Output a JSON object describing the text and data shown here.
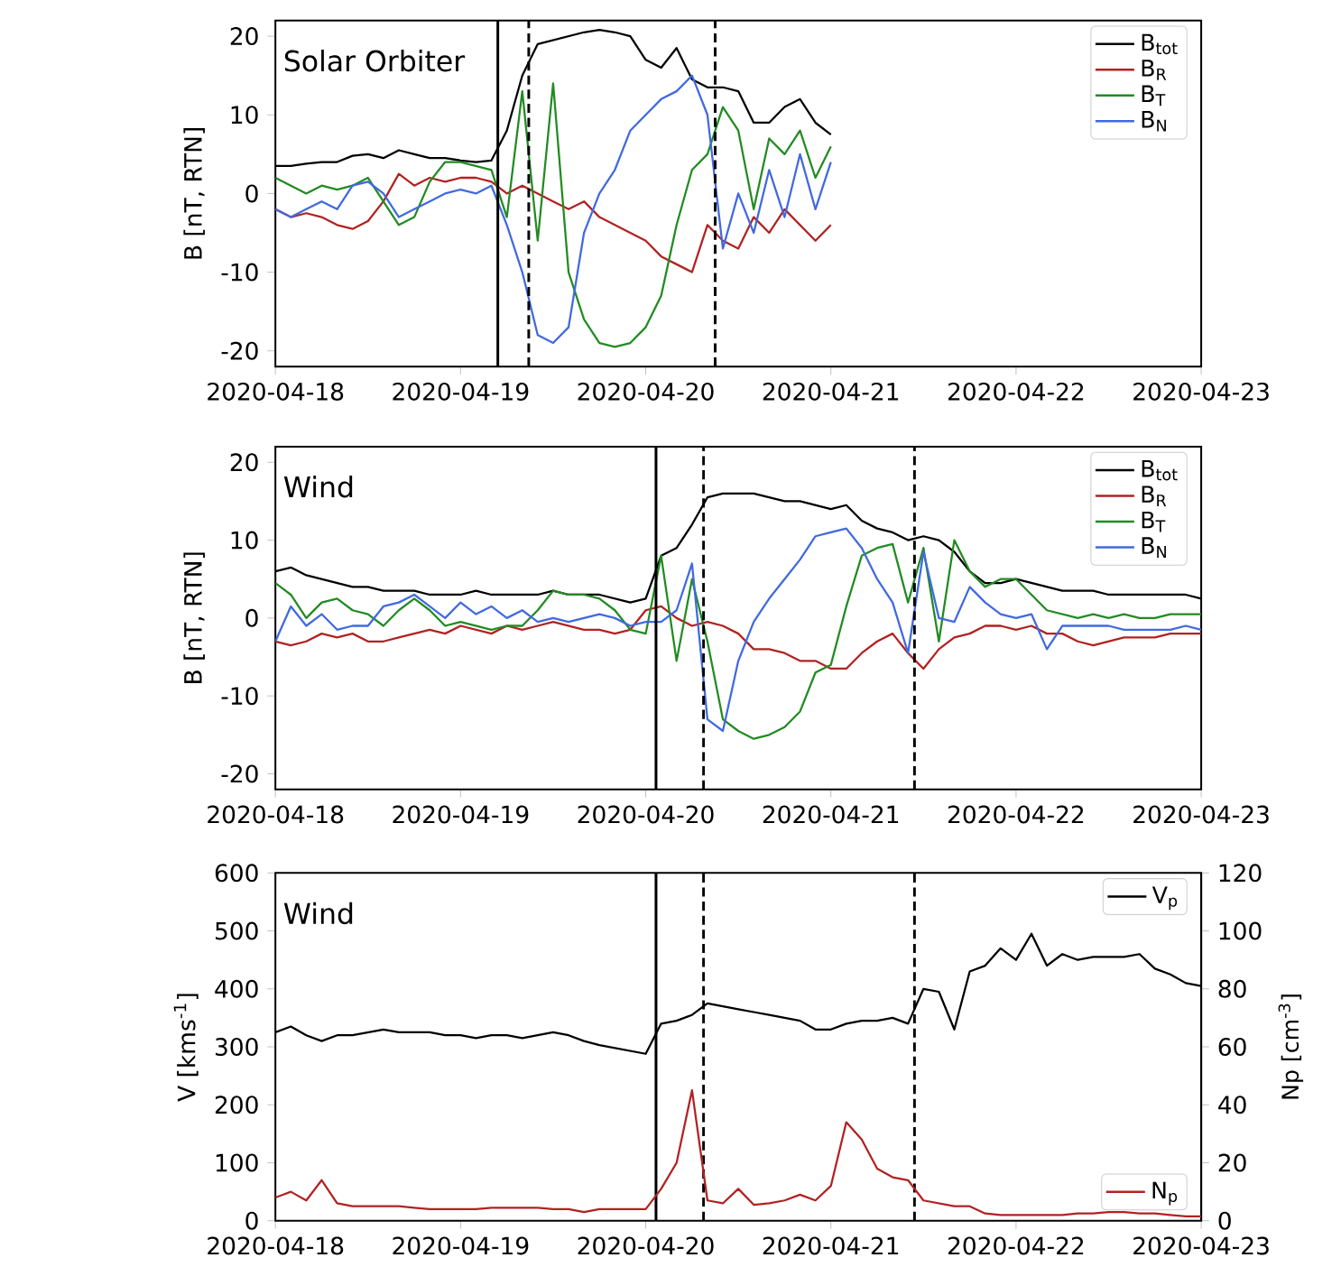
{
  "chart_data": [
    {
      "type": "line",
      "title": "Solar Orbiter",
      "ylabel": "B [nT, RTN]",
      "legend": "top right",
      "xlim": [
        "2020-04-18",
        "2020-04-23"
      ],
      "xticks": [
        "2020-04-18",
        "2020-04-19",
        "2020-04-20",
        "2020-04-21",
        "2020-04-22",
        "2020-04-23"
      ],
      "ylim": [
        -22,
        22
      ],
      "yticks": [
        -20,
        -10,
        0,
        10,
        20
      ],
      "x": [
        "2020-04-18T00:00",
        "2020-04-18T02:00",
        "2020-04-18T04:00",
        "2020-04-18T06:00",
        "2020-04-18T08:00",
        "2020-04-18T10:00",
        "2020-04-18T12:00",
        "2020-04-18T14:00",
        "2020-04-18T16:00",
        "2020-04-18T18:00",
        "2020-04-18T20:00",
        "2020-04-18T22:00",
        "2020-04-19T00:00",
        "2020-04-19T02:00",
        "2020-04-19T04:00",
        "2020-04-19T06:00",
        "2020-04-19T08:00",
        "2020-04-19T10:00",
        "2020-04-19T12:00",
        "2020-04-19T14:00",
        "2020-04-19T16:00",
        "2020-04-19T18:00",
        "2020-04-19T20:00",
        "2020-04-19T22:00",
        "2020-04-20T00:00",
        "2020-04-20T02:00",
        "2020-04-20T04:00",
        "2020-04-20T06:00",
        "2020-04-20T08:00",
        "2020-04-20T10:00",
        "2020-04-20T12:00",
        "2020-04-20T14:00",
        "2020-04-20T16:00",
        "2020-04-20T18:00",
        "2020-04-20T20:00",
        "2020-04-20T22:00",
        "2020-04-21T00:00"
      ],
      "series": [
        {
          "name": "B$_{tot}$",
          "color": "#000000",
          "values": [
            3.5,
            3.5,
            3.8,
            4,
            4,
            4.8,
            5,
            4.5,
            5.5,
            5,
            4.5,
            4.5,
            4.2,
            4,
            4.2,
            8,
            15,
            19,
            19.5,
            20,
            20.5,
            20.8,
            20.5,
            20,
            17,
            16,
            18.5,
            14.5,
            13.5,
            13.5,
            13,
            9,
            9,
            11,
            12,
            9,
            7.5
          ]
        },
        {
          "name": "B$_{R}$",
          "color": "#b22222",
          "values": [
            -2,
            -3,
            -2.5,
            -3,
            -4,
            -4.5,
            -3.5,
            -1,
            2.5,
            1,
            2,
            1.5,
            2,
            2,
            1.5,
            0,
            1,
            0,
            -1,
            -2,
            -1,
            -3,
            -4,
            -5,
            -6,
            -8,
            -9,
            -10,
            -4,
            -6,
            -7,
            -3,
            -5,
            -2,
            -4,
            -6,
            -4
          ]
        },
        {
          "name": "B$_{T}$",
          "color": "#228b22",
          "values": [
            2,
            1,
            0,
            1,
            0.5,
            1,
            2,
            -1,
            -4,
            -3,
            1.5,
            4,
            4,
            3.5,
            3,
            -3,
            13,
            -6,
            14,
            -10,
            -16,
            -19,
            -19.5,
            -19,
            -17,
            -13,
            -4,
            3,
            5,
            11,
            8,
            -2,
            7,
            5,
            8,
            2,
            6
          ]
        },
        {
          "name": "B$_{N}$",
          "color": "#4169e1",
          "values": [
            -2,
            -3,
            -2,
            -1,
            -2,
            1,
            1.5,
            0,
            -3,
            -2,
            -1,
            0,
            0.5,
            0,
            1,
            -4,
            -10,
            -18,
            -19,
            -17,
            -5,
            0,
            3,
            8,
            10,
            12,
            13,
            15,
            10,
            -7,
            0,
            -5,
            3,
            -3,
            5,
            -2,
            4
          ]
        }
      ],
      "ref_lines": [
        {
          "axis": "x",
          "value": "2020-04-19T04:50",
          "color": "#000000",
          "line_style": "solid"
        },
        {
          "axis": "x",
          "value": "2020-04-19T08:50",
          "color": "#000000",
          "line_style": "dashed"
        },
        {
          "axis": "x",
          "value": "2020-04-20T09:00",
          "color": "#000000",
          "line_style": "dashed"
        }
      ]
    },
    {
      "type": "line",
      "title": "Wind",
      "ylabel": "B [nT, RTN]",
      "legend": "top right",
      "xlim": [
        "2020-04-18",
        "2020-04-23"
      ],
      "xticks": [
        "2020-04-18",
        "2020-04-19",
        "2020-04-20",
        "2020-04-21",
        "2020-04-22",
        "2020-04-23"
      ],
      "ylim": [
        -22,
        22
      ],
      "yticks": [
        -20,
        -10,
        0,
        10,
        20
      ],
      "x": [
        "2020-04-18T00:00",
        "2020-04-18T02:00",
        "2020-04-18T04:00",
        "2020-04-18T06:00",
        "2020-04-18T08:00",
        "2020-04-18T10:00",
        "2020-04-18T12:00",
        "2020-04-18T14:00",
        "2020-04-18T16:00",
        "2020-04-18T18:00",
        "2020-04-18T20:00",
        "2020-04-18T22:00",
        "2020-04-19T00:00",
        "2020-04-19T02:00",
        "2020-04-19T04:00",
        "2020-04-19T06:00",
        "2020-04-19T08:00",
        "2020-04-19T10:00",
        "2020-04-19T12:00",
        "2020-04-19T14:00",
        "2020-04-19T16:00",
        "2020-04-19T18:00",
        "2020-04-19T20:00",
        "2020-04-19T22:00",
        "2020-04-20T00:00",
        "2020-04-20T02:00",
        "2020-04-20T04:00",
        "2020-04-20T06:00",
        "2020-04-20T08:00",
        "2020-04-20T10:00",
        "2020-04-20T12:00",
        "2020-04-20T14:00",
        "2020-04-20T16:00",
        "2020-04-20T18:00",
        "2020-04-20T20:00",
        "2020-04-20T22:00",
        "2020-04-21T00:00",
        "2020-04-21T02:00",
        "2020-04-21T04:00",
        "2020-04-21T06:00",
        "2020-04-21T08:00",
        "2020-04-21T10:00",
        "2020-04-21T12:00",
        "2020-04-21T14:00",
        "2020-04-21T16:00",
        "2020-04-21T18:00",
        "2020-04-21T20:00",
        "2020-04-21T22:00",
        "2020-04-22T00:00",
        "2020-04-22T02:00",
        "2020-04-22T04:00",
        "2020-04-22T06:00",
        "2020-04-22T08:00",
        "2020-04-22T10:00",
        "2020-04-22T12:00",
        "2020-04-22T14:00",
        "2020-04-22T16:00",
        "2020-04-22T18:00",
        "2020-04-22T20:00",
        "2020-04-22T22:00",
        "2020-04-23T00:00"
      ],
      "series": [
        {
          "name": "B$_{tot}$",
          "color": "#000000",
          "values": [
            6,
            6.5,
            5.5,
            5,
            4.5,
            4,
            4,
            3.5,
            3.5,
            3.5,
            3,
            3,
            3,
            3.5,
            3,
            3,
            3,
            3,
            3.5,
            3,
            3,
            3,
            2.5,
            2,
            2.5,
            8,
            9,
            12,
            15.5,
            16,
            16,
            16,
            15.5,
            15,
            15,
            14.5,
            14,
            14.5,
            12.5,
            11.5,
            11,
            10,
            10.5,
            10,
            8.5,
            6,
            4.5,
            4.5,
            5,
            4.5,
            4,
            3.5,
            3.5,
            3.5,
            3,
            3,
            3,
            3,
            3,
            3,
            2.5
          ]
        },
        {
          "name": "B$_{R}$",
          "color": "#b22222",
          "values": [
            -3,
            -3.5,
            -3,
            -2,
            -2.5,
            -2,
            -3,
            -3,
            -2.5,
            -2,
            -1.5,
            -2,
            -1,
            -1.5,
            -2,
            -1,
            -1.5,
            -1,
            -0.5,
            -1,
            -1.5,
            -1.5,
            -2,
            -1.5,
            1,
            1.5,
            0,
            -1,
            -0.5,
            -1,
            -2,
            -4,
            -4,
            -4.5,
            -5.5,
            -5.5,
            -6.5,
            -6.5,
            -4.5,
            -3,
            -2,
            -4.5,
            -6.5,
            -4,
            -2.5,
            -2,
            -1,
            -1,
            -1.5,
            -1,
            -2,
            -2,
            -3,
            -3.5,
            -3,
            -2.5,
            -2.5,
            -2.5,
            -2,
            -2,
            -2
          ]
        },
        {
          "name": "B$_{T}$",
          "color": "#228b22",
          "values": [
            4.5,
            3,
            0,
            2,
            2.5,
            1,
            0.5,
            -1,
            1,
            2.5,
            1,
            -1,
            -0.5,
            -1,
            -1.5,
            -1,
            -1,
            1,
            3.5,
            3,
            3,
            2.5,
            1,
            -1.5,
            -2,
            8,
            -5.5,
            5,
            -3,
            -13,
            -14.5,
            -15.5,
            -15,
            -14,
            -12,
            -7,
            -6,
            1.5,
            8,
            9,
            9.5,
            2,
            9,
            -3,
            10,
            6,
            4,
            5,
            5,
            3,
            1,
            0.5,
            0,
            0.5,
            0,
            0.5,
            0,
            0,
            0.5,
            0.5,
            0.5
          ]
        },
        {
          "name": "B$_{N}$",
          "color": "#4169e1",
          "values": [
            -3,
            1.5,
            -1,
            0.5,
            -1.5,
            -1,
            -1,
            1.5,
            2,
            3,
            1.5,
            0,
            2,
            0.5,
            1.5,
            0,
            1,
            -0.5,
            0,
            -0.5,
            0,
            0.5,
            0,
            -1,
            -0.5,
            -0.5,
            1,
            7,
            -13,
            -14.5,
            -5.5,
            -0.5,
            2.5,
            5,
            7.5,
            10.5,
            11,
            11.5,
            9,
            5,
            2,
            -4.5,
            8.5,
            0,
            -0.5,
            4,
            2,
            0.5,
            0,
            0.5,
            -4,
            -1,
            -1,
            -1,
            -1,
            -1.5,
            -1.5,
            -1.5,
            -1.5,
            -1,
            -1.5
          ]
        }
      ],
      "ref_lines": [
        {
          "axis": "x",
          "value": "2020-04-20T01:20",
          "color": "#000000",
          "line_style": "solid"
        },
        {
          "axis": "x",
          "value": "2020-04-20T07:30",
          "color": "#000000",
          "line_style": "dashed"
        },
        {
          "axis": "x",
          "value": "2020-04-21T10:50",
          "color": "#000000",
          "line_style": "dashed"
        }
      ]
    },
    {
      "type": "line",
      "title": "Wind",
      "ylabel": "V [kms$^{-1}$]",
      "y2label": "Np [cm$^{-3}$]",
      "legend": "right",
      "xlim": [
        "2020-04-18",
        "2020-04-23"
      ],
      "xticks": [
        "2020-04-18",
        "2020-04-19",
        "2020-04-20",
        "2020-04-21",
        "2020-04-22",
        "2020-04-23"
      ],
      "ylim": [
        0,
        600
      ],
      "yticks": [
        0,
        100,
        200,
        300,
        400,
        500,
        600
      ],
      "y2lim": [
        0,
        120
      ],
      "y2ticks": [
        0,
        20,
        40,
        60,
        80,
        100,
        120
      ],
      "x": [
        "2020-04-18T00:00",
        "2020-04-18T02:00",
        "2020-04-18T04:00",
        "2020-04-18T06:00",
        "2020-04-18T08:00",
        "2020-04-18T10:00",
        "2020-04-18T12:00",
        "2020-04-18T14:00",
        "2020-04-18T16:00",
        "2020-04-18T18:00",
        "2020-04-18T20:00",
        "2020-04-18T22:00",
        "2020-04-19T00:00",
        "2020-04-19T02:00",
        "2020-04-19T04:00",
        "2020-04-19T06:00",
        "2020-04-19T08:00",
        "2020-04-19T10:00",
        "2020-04-19T12:00",
        "2020-04-19T14:00",
        "2020-04-19T16:00",
        "2020-04-19T18:00",
        "2020-04-19T20:00",
        "2020-04-19T22:00",
        "2020-04-20T00:00",
        "2020-04-20T02:00",
        "2020-04-20T04:00",
        "2020-04-20T06:00",
        "2020-04-20T08:00",
        "2020-04-20T10:00",
        "2020-04-20T12:00",
        "2020-04-20T14:00",
        "2020-04-20T16:00",
        "2020-04-20T18:00",
        "2020-04-20T20:00",
        "2020-04-20T22:00",
        "2020-04-21T00:00",
        "2020-04-21T02:00",
        "2020-04-21T04:00",
        "2020-04-21T06:00",
        "2020-04-21T08:00",
        "2020-04-21T10:00",
        "2020-04-21T12:00",
        "2020-04-21T14:00",
        "2020-04-21T16:00",
        "2020-04-21T18:00",
        "2020-04-21T20:00",
        "2020-04-21T22:00",
        "2020-04-22T00:00",
        "2020-04-22T02:00",
        "2020-04-22T04:00",
        "2020-04-22T06:00",
        "2020-04-22T08:00",
        "2020-04-22T10:00",
        "2020-04-22T12:00",
        "2020-04-22T14:00",
        "2020-04-22T16:00",
        "2020-04-22T18:00",
        "2020-04-22T20:00",
        "2020-04-22T22:00",
        "2020-04-23T00:00"
      ],
      "series": [
        {
          "name": "V$_{p}$",
          "color": "#000000",
          "axis": "y",
          "values": [
            325,
            335,
            320,
            310,
            320,
            320,
            325,
            330,
            325,
            325,
            325,
            320,
            320,
            315,
            320,
            320,
            315,
            320,
            325,
            320,
            310,
            303,
            298,
            293,
            288,
            340,
            345,
            355,
            375,
            370,
            365,
            360,
            355,
            350,
            345,
            330,
            330,
            340,
            345,
            345,
            350,
            340,
            400,
            395,
            330,
            430,
            440,
            470,
            450,
            495,
            440,
            460,
            450,
            455,
            455,
            455,
            460,
            435,
            425,
            410,
            405
          ]
        },
        {
          "name": "N$_{p}$",
          "color": "#b22222",
          "axis": "y2",
          "values": [
            8,
            10,
            7,
            14,
            6,
            5,
            5,
            5,
            5,
            4.5,
            4,
            4,
            4,
            4,
            4.5,
            4.5,
            4.5,
            4.5,
            4,
            4,
            3,
            4,
            4,
            4,
            4,
            11,
            20,
            45,
            7,
            6,
            11,
            5.5,
            6,
            7,
            9,
            7,
            12,
            34,
            28,
            18,
            15,
            14,
            7,
            6,
            5,
            5,
            2.5,
            2,
            2,
            2,
            2,
            2,
            2.5,
            2.5,
            3,
            3,
            2.5,
            2.5,
            2,
            1.5,
            1.5
          ]
        }
      ],
      "ref_lines": [
        {
          "axis": "x",
          "value": "2020-04-20T01:20",
          "color": "#000000",
          "line_style": "solid"
        },
        {
          "axis": "x",
          "value": "2020-04-20T07:30",
          "color": "#000000",
          "line_style": "dashed"
        },
        {
          "axis": "x",
          "value": "2020-04-21T10:50",
          "color": "#000000",
          "line_style": "dashed"
        }
      ]
    }
  ]
}
